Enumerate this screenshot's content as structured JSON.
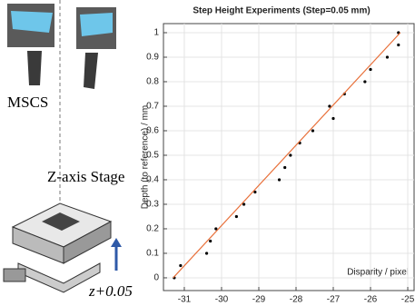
{
  "diagram": {
    "labels": [
      "MSCS",
      "Z-axis Stage",
      "z+0.05"
    ]
  },
  "chart_data": {
    "type": "scatter",
    "title": "Step Height Experiments (Step=0.05 mm)",
    "x_label": "Disparity / pixel",
    "y_label": "Depth (to reference) / mm",
    "series": [
      {
        "color": "#000000",
        "style": "points",
        "x": [
          -31.27,
          -31.1,
          -30.4,
          -30.3,
          -30.15,
          -29.6,
          -29.4,
          -29.1,
          -28.45,
          -28.3,
          -28.15,
          -27.9,
          -27.55,
          -27.0,
          -27.1,
          -26.7,
          -26.15,
          -26.0,
          -25.55,
          -25.25,
          -25.25
        ],
        "values": [
          0,
          0.05,
          0.1,
          0.15,
          0.2,
          0.25,
          0.3,
          0.35,
          0.4,
          0.45,
          0.5,
          0.55,
          0.6,
          0.65,
          0.7,
          0.75,
          0.8,
          0.85,
          0.9,
          0.95,
          1.0
        ]
      },
      {
        "color": "#e8703a",
        "style": "line",
        "x": [
          -31.3,
          -25.2
        ],
        "values": [
          0,
          1.0
        ]
      }
    ],
    "xlim": [
      -31.56,
      -24.83
    ],
    "ylim": [
      -0.052,
      1.037
    ],
    "xticks": [
      -31,
      -30,
      -29,
      -28,
      -27,
      -26,
      -25
    ],
    "yticks": [
      0,
      0.1,
      0.2,
      0.3,
      0.4,
      0.5,
      0.6,
      0.7,
      0.8,
      0.9,
      1
    ],
    "grid": true
  }
}
